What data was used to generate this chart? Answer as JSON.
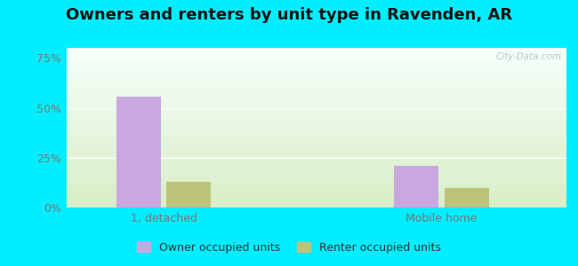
{
  "title": "Owners and renters by unit type in Ravenden, AR",
  "categories": [
    "1, detached",
    "Mobile home"
  ],
  "owner_values": [
    55.5,
    21.0
  ],
  "renter_values": [
    13.0,
    10.0
  ],
  "owner_color": "#c9a8e0",
  "renter_color": "#bcc47a",
  "yticks": [
    0,
    25,
    50,
    75
  ],
  "ytick_labels": [
    "0%",
    "25%",
    "50%",
    "75%"
  ],
  "ylim": [
    0,
    80
  ],
  "bar_width": 0.32,
  "group_positions": [
    1.0,
    3.0
  ],
  "bg_top": "#f5fffa",
  "bg_bottom": "#d8eec8",
  "outer_bg": "#00eeff",
  "watermark": "City-Data.com",
  "legend_labels": [
    "Owner occupied units",
    "Renter occupied units"
  ],
  "tick_color": "#777777",
  "grid_color": "#dddddd",
  "title_fontsize": 13
}
